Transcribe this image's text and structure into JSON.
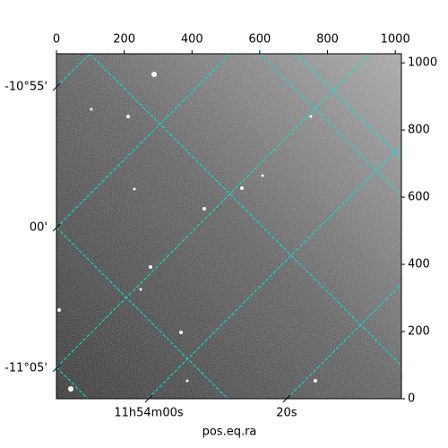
{
  "chart_data": {
    "type": "image",
    "xlabel": "pos.eq.ra",
    "xlim": [
      0,
      1018
    ],
    "xticks": [
      0,
      200,
      400,
      600,
      800,
      1000
    ],
    "ylim": [
      0,
      1027
    ],
    "yticks": [
      0,
      200,
      400,
      600,
      800,
      1000
    ],
    "ra_ticks": [
      {
        "value": 178.5,
        "label": "11h54m00s"
      },
      {
        "value": 178.5833,
        "label": "20s"
      }
    ],
    "dec_ticks": [
      {
        "value": -11.0833,
        "label": "-11°05'"
      },
      {
        "value": -11.0,
        "label": "00'"
      },
      {
        "value": -10.9167,
        "label": "-10°55'"
      }
    ],
    "grid": true,
    "grid_color": "#00e5e5"
  }
}
